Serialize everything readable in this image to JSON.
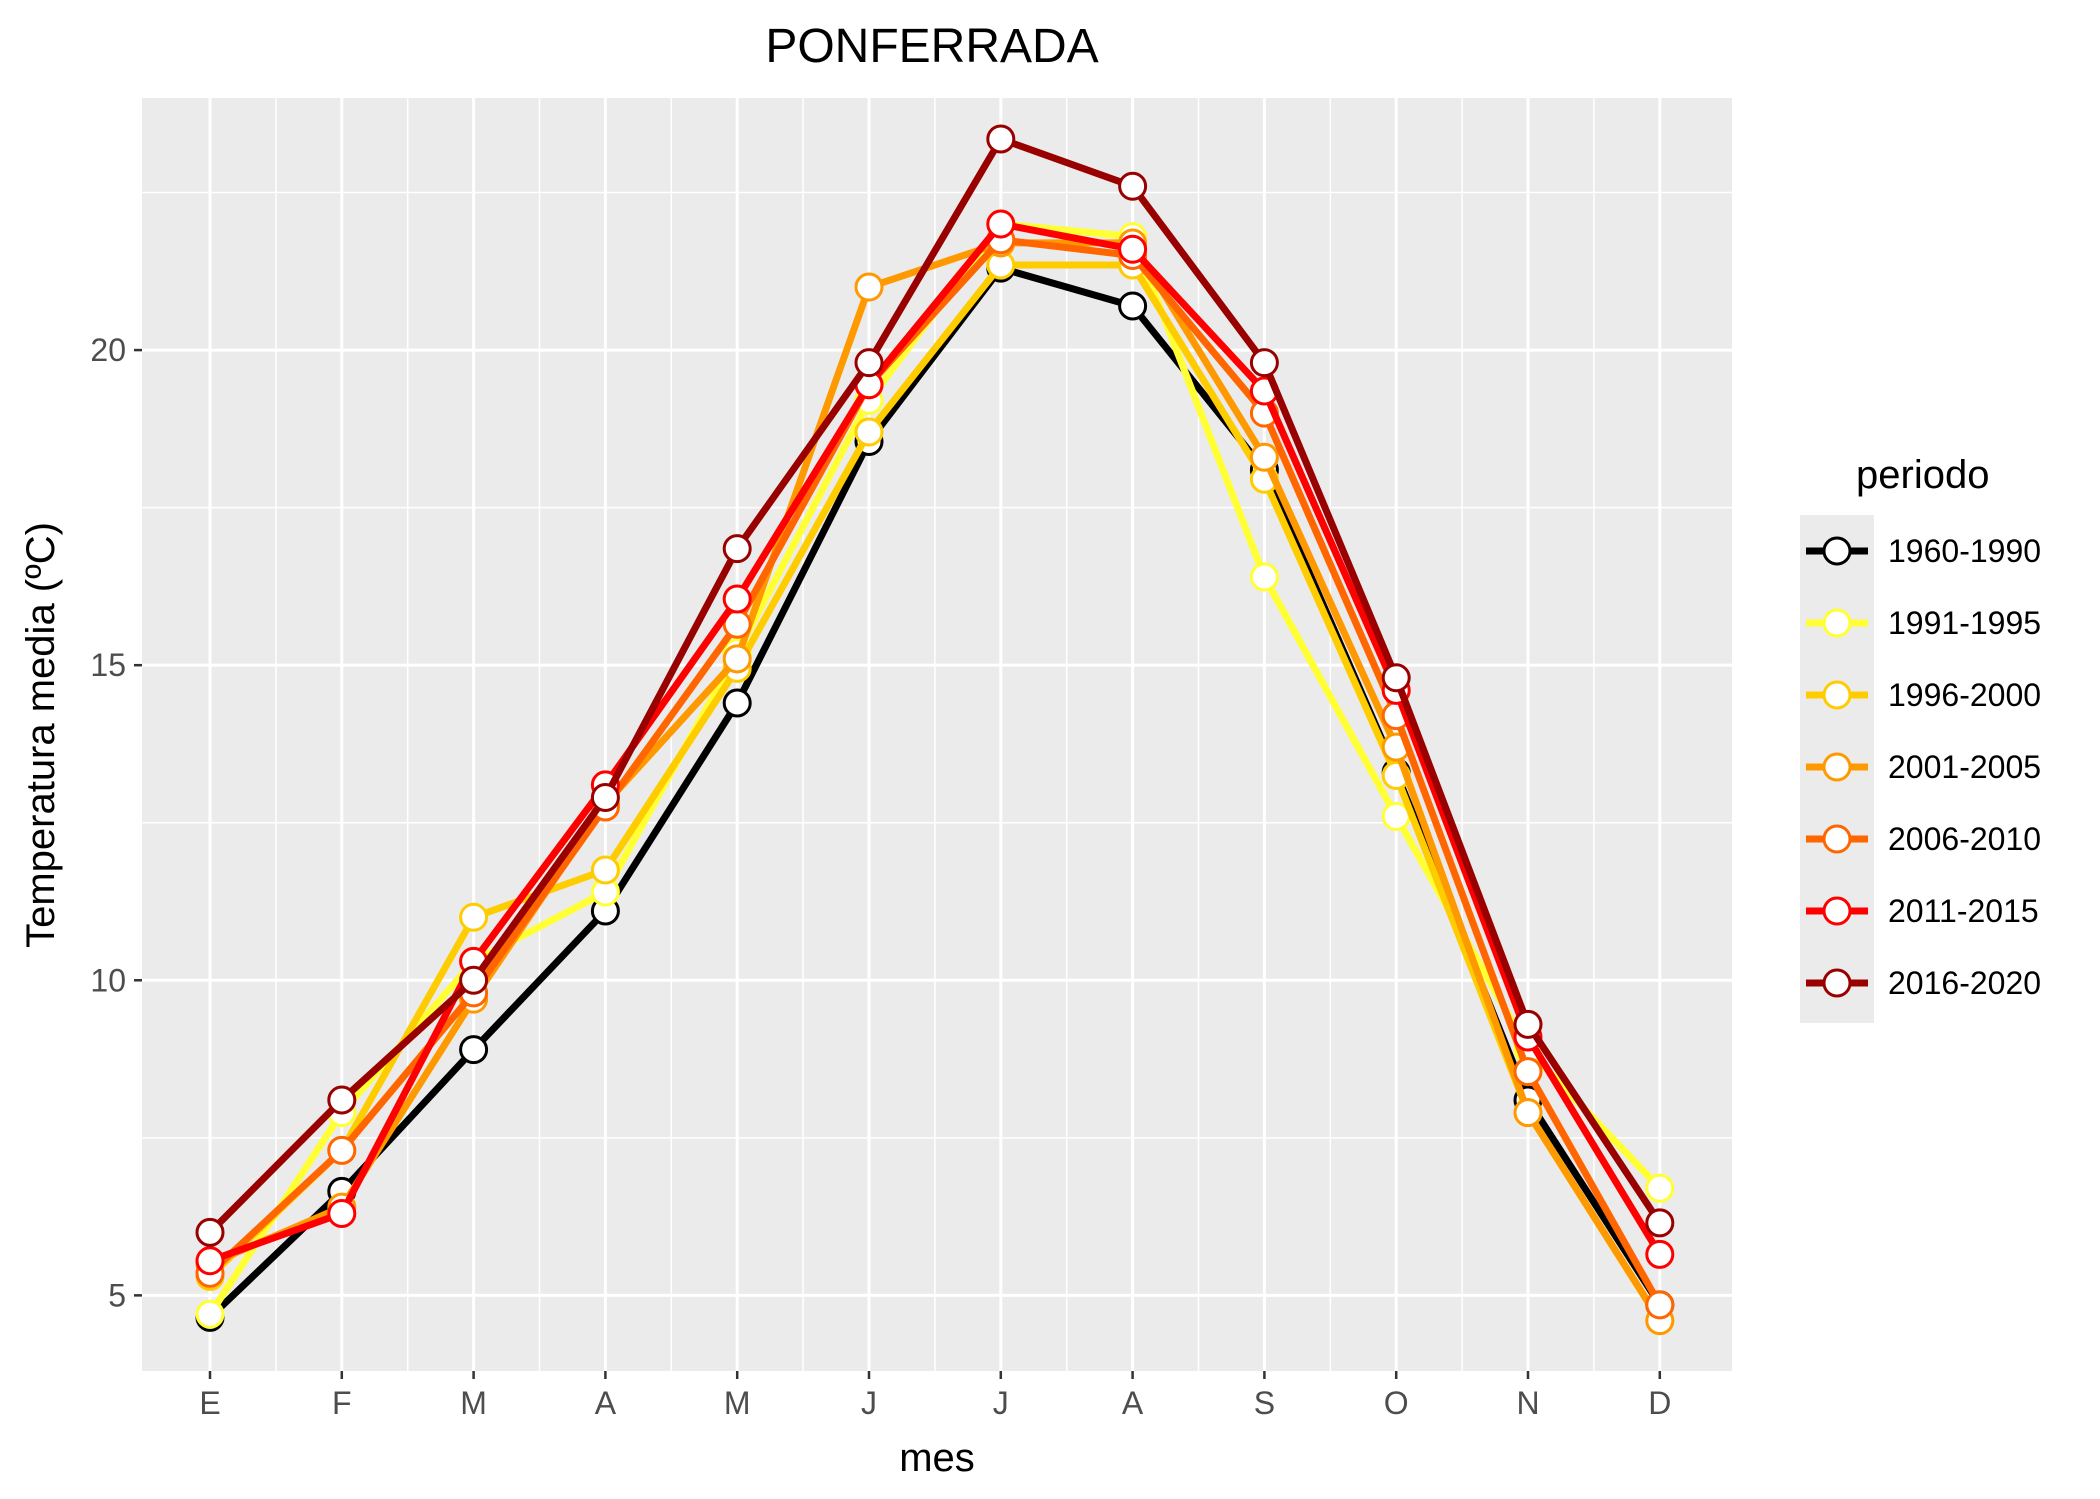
{
  "chart_data": {
    "type": "line",
    "title": "PONFERRADA",
    "xlabel": "mes",
    "ylabel": "Temperatura media (ºC)",
    "categories": [
      "E",
      "F",
      "M",
      "A",
      "M",
      "J",
      "J",
      "A",
      "S",
      "O",
      "N",
      "D"
    ],
    "ylim": [
      3.8,
      24.0
    ],
    "yticks": [
      5,
      10,
      15,
      20
    ],
    "grid": true,
    "legend": {
      "title": "periodo",
      "position": "right"
    },
    "series": [
      {
        "name": "1960-1990",
        "color": "#000000",
        "values": [
          4.65,
          6.65,
          8.9,
          11.1,
          14.4,
          18.55,
          21.3,
          20.7,
          18.1,
          13.3,
          8.1,
          4.85
        ]
      },
      {
        "name": "1991-1995",
        "color": "#FFFF33",
        "values": [
          4.7,
          7.9,
          10.3,
          11.4,
          15.2,
          19.2,
          22.0,
          21.8,
          16.4,
          12.6,
          8.9,
          6.7
        ]
      },
      {
        "name": "1996-2000",
        "color": "#FFCC00",
        "values": [
          5.3,
          7.3,
          11.0,
          11.75,
          14.95,
          18.7,
          21.35,
          21.35,
          17.95,
          13.25,
          7.9,
          4.6
        ]
      },
      {
        "name": "2001-2005",
        "color": "#FF9900",
        "values": [
          5.5,
          6.4,
          9.7,
          12.8,
          15.1,
          21.0,
          21.7,
          21.7,
          18.3,
          13.7,
          7.9,
          4.6
        ]
      },
      {
        "name": "2006-2010",
        "color": "#FF6600",
        "values": [
          5.35,
          7.3,
          9.8,
          12.75,
          15.65,
          19.45,
          21.75,
          21.5,
          19.0,
          14.2,
          8.55,
          4.85
        ]
      },
      {
        "name": "2011-2015",
        "color": "#FF0000",
        "values": [
          5.55,
          6.3,
          10.3,
          13.1,
          16.05,
          19.45,
          22.0,
          21.6,
          19.35,
          14.6,
          9.1,
          5.65
        ]
      },
      {
        "name": "2016-2020",
        "color": "#990000",
        "values": [
          6.0,
          8.1,
          10.0,
          12.9,
          16.85,
          19.8,
          23.35,
          22.6,
          19.8,
          14.8,
          9.3,
          6.15
        ]
      }
    ]
  }
}
